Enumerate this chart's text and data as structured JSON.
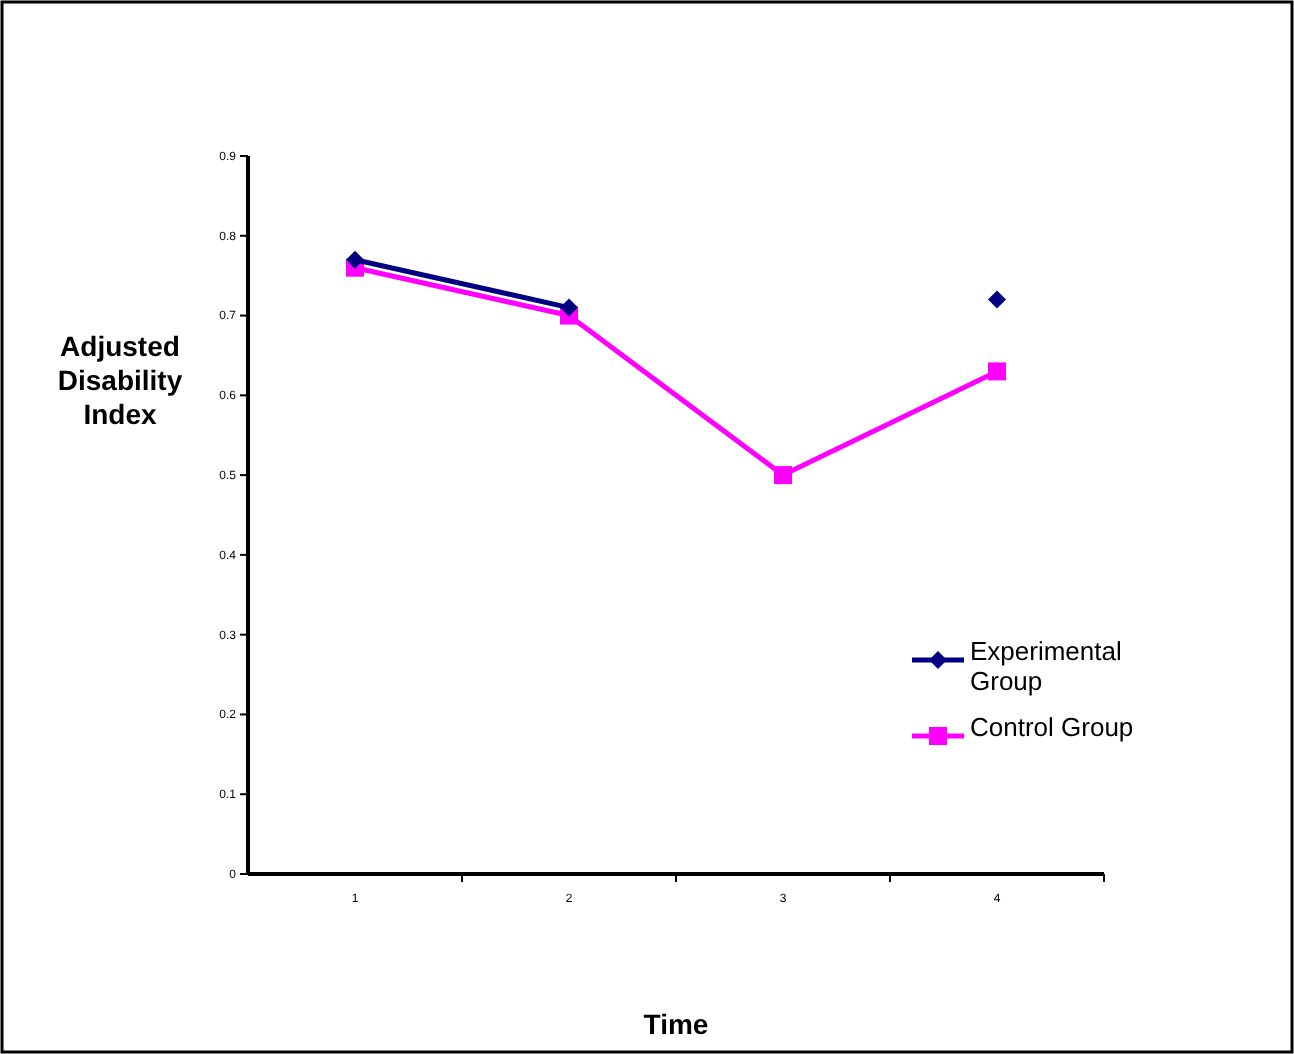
{
  "chart_data": {
    "type": "line",
    "xlabel": "Time",
    "ylabel": "Adjusted Disability Index",
    "categories": [
      "1",
      "2",
      "3",
      "4"
    ],
    "series": [
      {
        "name": "Experimental Group",
        "color": "#000080",
        "marker": "diamond",
        "values": [
          0.77,
          0.71,
          null,
          0.72
        ]
      },
      {
        "name": "Control Group",
        "color": "#ff00ff",
        "marker": "square",
        "values": [
          0.76,
          0.7,
          0.5,
          0.63
        ]
      }
    ],
    "ylim": [
      0,
      0.9
    ],
    "yticks": [
      0,
      0.1,
      0.2,
      0.3,
      0.4,
      0.5,
      0.6,
      0.7,
      0.8,
      0.9
    ],
    "grid": false,
    "legend": "right",
    "line_style": "solid"
  }
}
